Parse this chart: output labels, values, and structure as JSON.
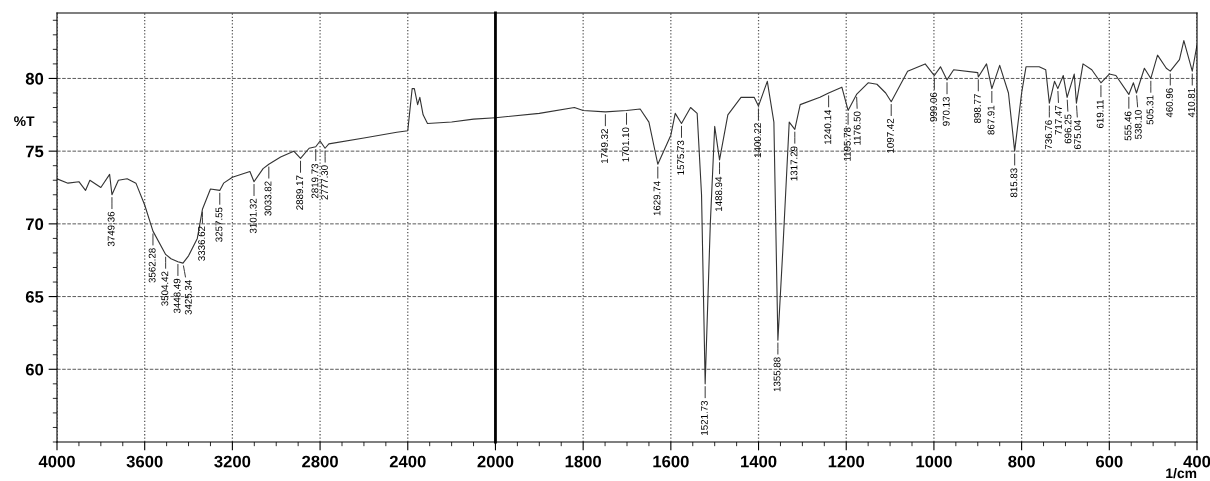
{
  "chart_data": [
    {
      "type": "line",
      "ylabel": "%T",
      "xlim": [
        4000,
        2000
      ],
      "ylim": [
        55,
        84.5
      ],
      "xticks": [
        4000,
        3600,
        3200,
        2800,
        2400,
        2000
      ],
      "yticks": [
        60,
        65,
        70,
        75,
        80
      ],
      "grid": true,
      "marker": "none",
      "line_style": "solid",
      "series": [
        {
          "color": "#333333",
          "x": [
            4000,
            3950,
            3900,
            3870,
            3850,
            3800,
            3760,
            3749.36,
            3720,
            3680,
            3640,
            3600,
            3562.28,
            3504.42,
            3480,
            3448.49,
            3425.34,
            3400,
            3360,
            3336.62,
            3300,
            3257.55,
            3240,
            3200,
            3120,
            3101.32,
            3060,
            3033.82,
            2980,
            2920,
            2889.17,
            2850,
            2819.73,
            2800,
            2777.3,
            2760,
            2600,
            2450,
            2400,
            2380,
            2370,
            2355,
            2345,
            2330,
            2310,
            2200,
            2100,
            2000
          ],
          "values": [
            73.1,
            72.8,
            72.9,
            72.3,
            73.0,
            72.5,
            73.4,
            72.0,
            73.0,
            73.1,
            72.8,
            71.3,
            69.5,
            67.9,
            67.6,
            67.4,
            67.3,
            67.8,
            69.0,
            71.0,
            72.4,
            72.3,
            72.8,
            73.2,
            73.6,
            72.9,
            73.8,
            74.1,
            74.6,
            75.0,
            74.5,
            75.2,
            75.3,
            75.7,
            75.2,
            75.5,
            75.9,
            76.3,
            76.4,
            79.3,
            79.3,
            78.2,
            78.7,
            77.5,
            76.9,
            77.0,
            77.2,
            77.3
          ]
        }
      ],
      "annotations": [
        {
          "text": "3749.36",
          "x": 3749.36,
          "y": 72.0
        },
        {
          "text": "3562.28",
          "x": 3562.28,
          "y": 69.5
        },
        {
          "text": "3504.42",
          "x": 3504.42,
          "y": 67.9
        },
        {
          "text": "3448.49",
          "x": 3448.49,
          "y": 67.4
        },
        {
          "text": "3425.34",
          "x": 3425.34,
          "y": 67.3
        },
        {
          "text": "3336.62",
          "x": 3336.62,
          "y": 71.0
        },
        {
          "text": "3257.55",
          "x": 3257.55,
          "y": 72.3
        },
        {
          "text": "3101.32",
          "x": 3101.32,
          "y": 72.9
        },
        {
          "text": "3033.82",
          "x": 3033.82,
          "y": 74.1
        },
        {
          "text": "2889.17",
          "x": 2889.17,
          "y": 74.5
        },
        {
          "text": "2819.73",
          "x": 2819.73,
          "y": 75.3
        },
        {
          "text": "2777.30",
          "x": 2777.3,
          "y": 75.2
        }
      ]
    },
    {
      "type": "line",
      "xlabel": "1/cm",
      "xlim": [
        2000,
        400
      ],
      "ylim": [
        55,
        84.5
      ],
      "xticks": [
        1800,
        1600,
        1400,
        1200,
        1000,
        800,
        600,
        400
      ],
      "yticks": [
        60,
        65,
        70,
        75,
        80
      ],
      "tick_labels": "x",
      "grid": true,
      "marker": "none",
      "line_style": "solid",
      "ref_lines": [
        {
          "axis": "x",
          "value": 2000,
          "color": "#000000",
          "line_style": "solid"
        }
      ],
      "series": [
        {
          "color": "#333333",
          "x": [
            2000,
            1900,
            1820,
            1800,
            1749.32,
            1701.1,
            1670,
            1650,
            1629.74,
            1600,
            1590,
            1575.73,
            1555,
            1540,
            1530,
            1521.73,
            1510,
            1500,
            1488.94,
            1470,
            1440,
            1410,
            1400.22,
            1380,
            1365,
            1355.88,
            1345,
            1330,
            1317.29,
            1305,
            1260,
            1240.14,
            1210,
            1195.78,
            1176.5,
            1150,
            1130,
            1110,
            1097.42,
            1060,
            1020,
            999.06,
            985,
            970.13,
            955,
            900,
            898.77,
            880,
            867.91,
            850,
            830,
            815.83,
            800,
            790,
            760,
            745,
            736.76,
            725,
            717.47,
            705,
            696.25,
            680,
            675.04,
            660,
            640,
            619.11,
            600,
            585,
            555.46,
            545,
            538.1,
            520,
            505.31,
            490,
            470,
            460.96,
            440,
            430,
            410.81,
            400
          ],
          "values": [
            77.3,
            77.6,
            78.0,
            77.8,
            77.7,
            77.8,
            77.9,
            77.0,
            74.1,
            76.1,
            77.6,
            76.9,
            78.0,
            77.6,
            72.0,
            59.0,
            70.0,
            76.7,
            74.4,
            77.5,
            78.7,
            78.7,
            78.1,
            79.8,
            77.0,
            62.0,
            68.0,
            77.0,
            76.5,
            78.2,
            78.7,
            79.0,
            79.4,
            77.8,
            78.9,
            79.7,
            79.6,
            79.0,
            78.4,
            80.5,
            81.0,
            80.2,
            80.8,
            79.9,
            80.6,
            80.4,
            80.1,
            81.0,
            79.3,
            80.9,
            79.0,
            75.0,
            79.0,
            80.8,
            80.8,
            80.6,
            78.3,
            79.8,
            79.3,
            80.2,
            78.7,
            80.3,
            78.3,
            81.0,
            80.6,
            79.7,
            80.3,
            80.2,
            78.9,
            79.7,
            79.0,
            80.7,
            80.0,
            81.6,
            80.7,
            80.5,
            81.3,
            82.6,
            80.5,
            82.3
          ]
        }
      ],
      "annotations": [
        {
          "text": "1749.32",
          "x": 1749.32,
          "y": 77.7
        },
        {
          "text": "1701.10",
          "x": 1701.1,
          "y": 77.8
        },
        {
          "text": "1629.74",
          "x": 1629.74,
          "y": 74.1
        },
        {
          "text": "1575.73",
          "x": 1575.73,
          "y": 76.9
        },
        {
          "text": "1521.73",
          "x": 1521.73,
          "y": 59.0
        },
        {
          "text": "1488.94",
          "x": 1488.94,
          "y": 74.4
        },
        {
          "text": "1400.22",
          "x": 1400.22,
          "y": 78.1
        },
        {
          "text": "1355.88",
          "x": 1355.88,
          "y": 62.0
        },
        {
          "text": "1317.29",
          "x": 1317.29,
          "y": 76.5
        },
        {
          "text": "1240.14",
          "x": 1240.14,
          "y": 79.0
        },
        {
          "text": "1195.78",
          "x": 1195.78,
          "y": 77.8
        },
        {
          "text": "1176.50",
          "x": 1176.5,
          "y": 78.9
        },
        {
          "text": "1097.42",
          "x": 1097.42,
          "y": 78.4
        },
        {
          "text": "999.06",
          "x": 999.06,
          "y": 80.2
        },
        {
          "text": "970.13",
          "x": 970.13,
          "y": 79.9
        },
        {
          "text": "898.77",
          "x": 898.77,
          "y": 80.1
        },
        {
          "text": "867.91",
          "x": 867.91,
          "y": 79.3
        },
        {
          "text": "815.83",
          "x": 815.83,
          "y": 75.0
        },
        {
          "text": "736.76",
          "x": 736.76,
          "y": 78.3
        },
        {
          "text": "717.47",
          "x": 717.47,
          "y": 79.3
        },
        {
          "text": "696.25",
          "x": 696.25,
          "y": 78.7
        },
        {
          "text": "675.04",
          "x": 675.04,
          "y": 78.3
        },
        {
          "text": "619.11",
          "x": 619.11,
          "y": 79.7
        },
        {
          "text": "555.46",
          "x": 555.46,
          "y": 78.9
        },
        {
          "text": "538.10",
          "x": 538.1,
          "y": 79.0
        },
        {
          "text": "505.31",
          "x": 505.31,
          "y": 80.0
        },
        {
          "text": "460.96",
          "x": 460.96,
          "y": 80.5
        },
        {
          "text": "410.81",
          "x": 410.81,
          "y": 80.5
        }
      ]
    }
  ]
}
